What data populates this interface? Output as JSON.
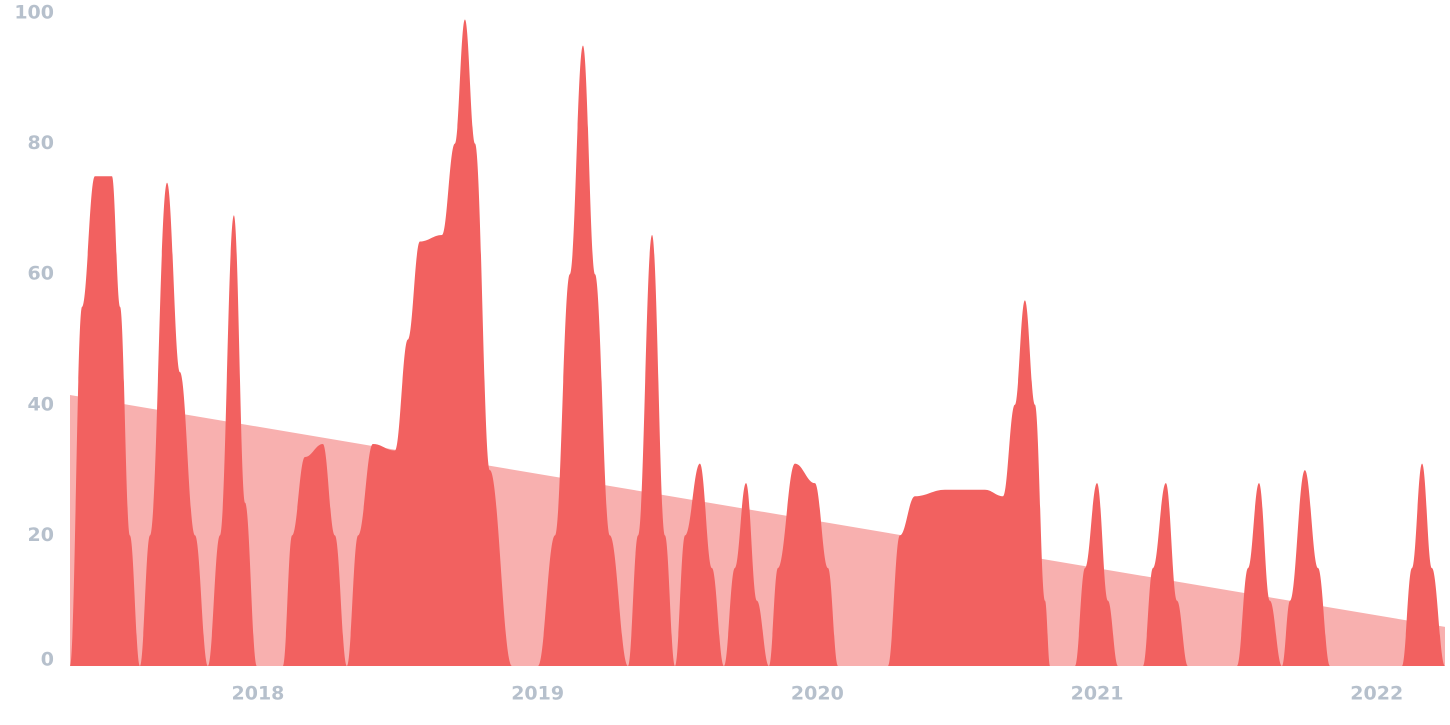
{
  "chart_data": {
    "type": "area",
    "xlim": [
      2017.328,
      2022.244
    ],
    "xticks": [
      2018,
      2019,
      2020,
      2021,
      2022
    ],
    "ylim": [
      0,
      100
    ],
    "yticks": [
      0,
      20,
      40,
      60,
      80,
      100
    ],
    "series": [
      {
        "color": "#f8b0af",
        "x": [
          2017.328,
          2022.244
        ],
        "values": [
          41.5,
          6
        ]
      },
      {
        "color": "#f26160",
        "x": [
          2017.328,
          2017.371,
          2017.417,
          2017.478,
          2017.507,
          2017.542,
          2017.578,
          2017.614,
          2017.675,
          2017.721,
          2017.775,
          2017.821,
          2017.864,
          2017.914,
          2017.954,
          2017.996,
          2018.089,
          2018.122,
          2018.168,
          2018.232,
          2018.275,
          2018.318,
          2018.358,
          2018.411,
          2018.49,
          2018.536,
          2018.579,
          2018.658,
          2018.704,
          2018.74,
          2018.776,
          2018.829,
          2018.908,
          2019.001,
          2019.062,
          2019.115,
          2019.162,
          2019.205,
          2019.258,
          2019.323,
          2019.359,
          2019.409,
          2019.455,
          2019.491,
          2019.527,
          2019.58,
          2019.623,
          2019.666,
          2019.705,
          2019.745,
          2019.784,
          2019.827,
          2019.859,
          2019.92,
          2019.991,
          2020.038,
          2020.074,
          2020.252,
          2020.295,
          2020.349,
          2020.456,
          2020.599,
          2020.664,
          2020.706,
          2020.742,
          2020.778,
          2020.814,
          2020.832,
          2020.921,
          2020.957,
          2021.0,
          2021.039,
          2021.075,
          2021.164,
          2021.2,
          2021.246,
          2021.286,
          2021.325,
          2021.5,
          2021.54,
          2021.579,
          2021.618,
          2021.661,
          2021.69,
          2021.743,
          2021.79,
          2021.833,
          2022.09,
          2022.126,
          2022.162,
          2022.197,
          2022.244
        ],
        "values": [
          0,
          55,
          75,
          75,
          55,
          20,
          0,
          20,
          74,
          45,
          20,
          0,
          20,
          69,
          25,
          0,
          0,
          20,
          32,
          34,
          20,
          0,
          20,
          34,
          33,
          50,
          65,
          66,
          80,
          99,
          80,
          30,
          0,
          0,
          20,
          60,
          95,
          60,
          20,
          0,
          20,
          66,
          20,
          0,
          20,
          31,
          15,
          0,
          15,
          28,
          10,
          0,
          15,
          31,
          28,
          15,
          0,
          0,
          20,
          26,
          27,
          27,
          26,
          40,
          56,
          40,
          10,
          0,
          0,
          15,
          28,
          10,
          0,
          0,
          15,
          28,
          10,
          0,
          0,
          15,
          28,
          10,
          0,
          10,
          30,
          15,
          0,
          0,
          15,
          31,
          15,
          0
        ]
      }
    ]
  }
}
